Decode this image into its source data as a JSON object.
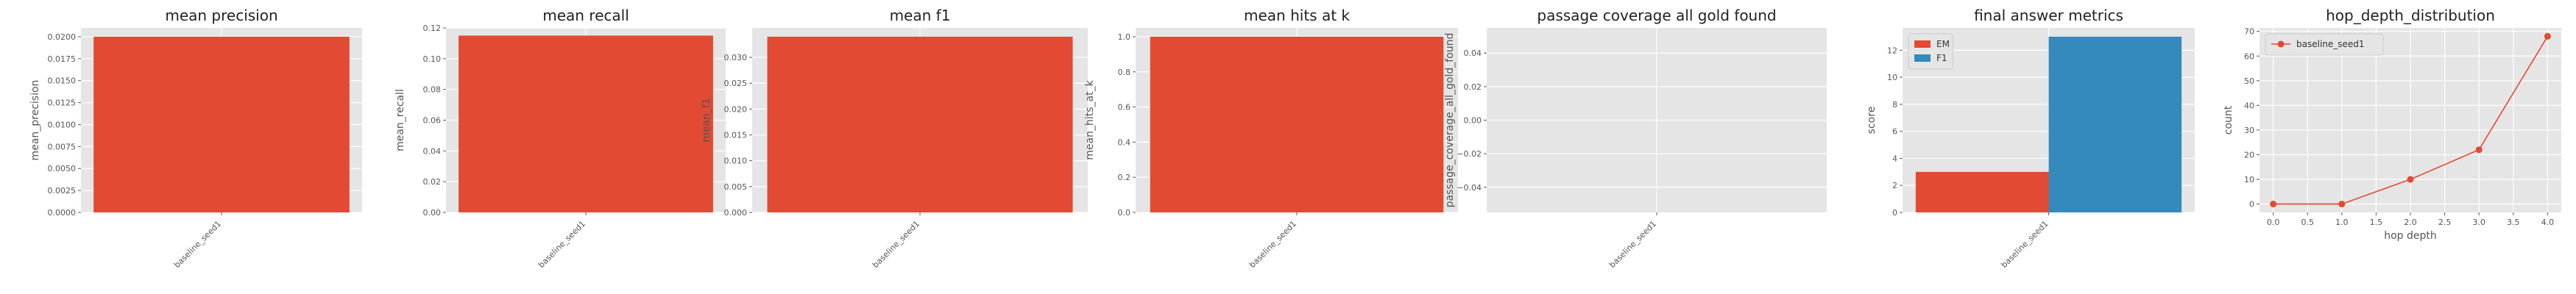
{
  "chart_data": [
    {
      "type": "bar",
      "title": "mean precision",
      "xlabel": "",
      "ylabel": "mean_precision",
      "categories": [
        "baseline_seed1"
      ],
      "values": [
        0.02
      ],
      "ylim": [
        0,
        0.021
      ],
      "yticks": [
        "0.0000",
        "0.0025",
        "0.0050",
        "0.0075",
        "0.0100",
        "0.0125",
        "0.0150",
        "0.0175",
        "0.0200"
      ],
      "colors": [
        "#E24A33"
      ],
      "grid": true
    },
    {
      "type": "bar",
      "title": "mean recall",
      "xlabel": "",
      "ylabel": "mean_recall",
      "categories": [
        "baseline_seed1"
      ],
      "values": [
        0.115
      ],
      "ylim": [
        0,
        0.12
      ],
      "yticks": [
        "0.00",
        "0.02",
        "0.04",
        "0.06",
        "0.08",
        "0.10",
        "0.12"
      ],
      "colors": [
        "#E24A33"
      ],
      "grid": true
    },
    {
      "type": "bar",
      "title": "mean f1",
      "xlabel": "",
      "ylabel": "mean_f1",
      "categories": [
        "baseline_seed1"
      ],
      "values": [
        0.034
      ],
      "ylim": [
        0,
        0.0357
      ],
      "yticks": [
        "0.000",
        "0.005",
        "0.010",
        "0.015",
        "0.020",
        "0.025",
        "0.030"
      ],
      "colors": [
        "#E24A33"
      ],
      "grid": true
    },
    {
      "type": "bar",
      "title": "mean hits at k",
      "xlabel": "",
      "ylabel": "mean_hits_at_k",
      "categories": [
        "baseline_seed1"
      ],
      "values": [
        1.0
      ],
      "ylim": [
        0,
        1.05
      ],
      "yticks": [
        "0.0",
        "0.2",
        "0.4",
        "0.6",
        "0.8",
        "1.0"
      ],
      "colors": [
        "#E24A33"
      ],
      "grid": true
    },
    {
      "type": "bar",
      "title": "passage coverage all gold found",
      "xlabel": "",
      "ylabel": "passage_coverage_all_gold_found",
      "categories": [
        "baseline_seed1"
      ],
      "values": [
        0
      ],
      "ylim": [
        -0.055,
        0.055
      ],
      "yticks": [
        "−0.04",
        "−0.02",
        "0.00",
        "0.02",
        "0.04"
      ],
      "colors": [
        "#E24A33"
      ],
      "grid": true
    },
    {
      "type": "bar",
      "title": "final answer metrics",
      "xlabel": "",
      "ylabel": "score",
      "categories": [
        "baseline_seed1"
      ],
      "series": [
        {
          "name": "EM",
          "values": [
            3
          ],
          "color": "#E24A33"
        },
        {
          "name": "F1",
          "values": [
            13
          ],
          "color": "#348ABD"
        }
      ],
      "ylim": [
        0,
        13.65
      ],
      "yticks": [
        "0",
        "2",
        "4",
        "6",
        "8",
        "10",
        "12"
      ],
      "legend": "top-left",
      "grid": true
    },
    {
      "type": "line",
      "title": "hop_depth_distribution",
      "xlabel": "hop depth",
      "ylabel": "count",
      "x": [
        0,
        1,
        2,
        3,
        4
      ],
      "series": [
        {
          "name": "baseline_seed1",
          "values": [
            0,
            0,
            10,
            22,
            68
          ],
          "color": "#E24A33"
        }
      ],
      "xlim": [
        -0.2,
        4.2
      ],
      "ylim": [
        -3.4,
        71.4
      ],
      "xticks": [
        "0.0",
        "0.5",
        "1.0",
        "1.5",
        "2.0",
        "2.5",
        "3.0",
        "3.5",
        "4.0"
      ],
      "yticks": [
        "0",
        "10",
        "20",
        "30",
        "40",
        "50",
        "60",
        "70"
      ],
      "legend": "top-left",
      "grid": true
    }
  ]
}
